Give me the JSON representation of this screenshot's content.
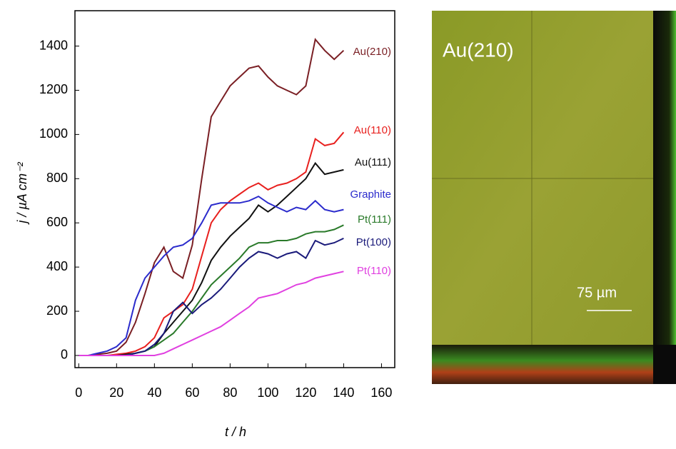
{
  "chart_data": {
    "type": "line",
    "y_label": "j / µA cm⁻²",
    "x_label": "t / h",
    "x": [
      0,
      5,
      10,
      15,
      20,
      25,
      30,
      35,
      40,
      45,
      50,
      55,
      60,
      65,
      70,
      75,
      80,
      85,
      90,
      95,
      100,
      105,
      110,
      115,
      120,
      125,
      130,
      135,
      140
    ],
    "xlim": [
      -2,
      167
    ],
    "xticks": [
      0,
      20,
      40,
      60,
      80,
      100,
      120,
      140,
      160
    ],
    "ylim": [
      -55,
      1560
    ],
    "yticks": [
      0,
      200,
      400,
      600,
      800,
      1000,
      1200,
      1400
    ],
    "series": [
      {
        "name": "Au(210)",
        "color": "#7a1f24",
        "values": [
          0,
          0,
          5,
          10,
          20,
          60,
          150,
          280,
          420,
          490,
          380,
          350,
          500,
          800,
          1080,
          1150,
          1220,
          1260,
          1300,
          1310,
          1260,
          1220,
          1200,
          1180,
          1220,
          1430,
          1380,
          1340,
          1380
        ]
      },
      {
        "name": "Au(110)",
        "color": "#e8201e",
        "values": [
          0,
          0,
          0,
          0,
          5,
          10,
          20,
          40,
          80,
          170,
          200,
          230,
          300,
          450,
          600,
          660,
          700,
          730,
          760,
          780,
          750,
          770,
          780,
          800,
          830,
          980,
          950,
          960,
          1010
        ]
      },
      {
        "name": "Au(111)",
        "color": "#111111",
        "values": [
          0,
          0,
          0,
          0,
          0,
          5,
          10,
          20,
          40,
          100,
          150,
          200,
          250,
          330,
          430,
          490,
          540,
          580,
          620,
          680,
          650,
          680,
          720,
          760,
          800,
          870,
          820,
          830,
          840
        ]
      },
      {
        "name": "Graphite",
        "color": "#2b2bcc",
        "values": [
          0,
          0,
          10,
          20,
          40,
          80,
          250,
          350,
          400,
          450,
          490,
          500,
          530,
          600,
          680,
          690,
          690,
          690,
          700,
          720,
          690,
          670,
          650,
          670,
          660,
          700,
          660,
          650,
          660
        ]
      },
      {
        "name": "Pt(111)",
        "color": "#2a7a2a",
        "values": [
          0,
          0,
          0,
          0,
          0,
          0,
          10,
          20,
          40,
          70,
          100,
          150,
          200,
          260,
          320,
          360,
          400,
          440,
          490,
          510,
          510,
          520,
          520,
          530,
          550,
          560,
          560,
          570,
          590
        ]
      },
      {
        "name": "Pt(100)",
        "color": "#1a1a7a",
        "values": [
          0,
          0,
          0,
          0,
          0,
          0,
          10,
          20,
          50,
          100,
          200,
          240,
          190,
          230,
          260,
          300,
          350,
          400,
          440,
          470,
          460,
          440,
          460,
          470,
          440,
          520,
          500,
          510,
          530
        ]
      },
      {
        "name": "Pt(110)",
        "color": "#e040e0",
        "values": [
          0,
          0,
          0,
          0,
          0,
          0,
          0,
          0,
          0,
          10,
          30,
          50,
          70,
          90,
          110,
          130,
          160,
          190,
          220,
          260,
          270,
          280,
          300,
          320,
          330,
          350,
          360,
          370,
          380
        ]
      }
    ]
  },
  "image_panel": {
    "label": "Au(210)",
    "scale_bar": "75 µm"
  }
}
